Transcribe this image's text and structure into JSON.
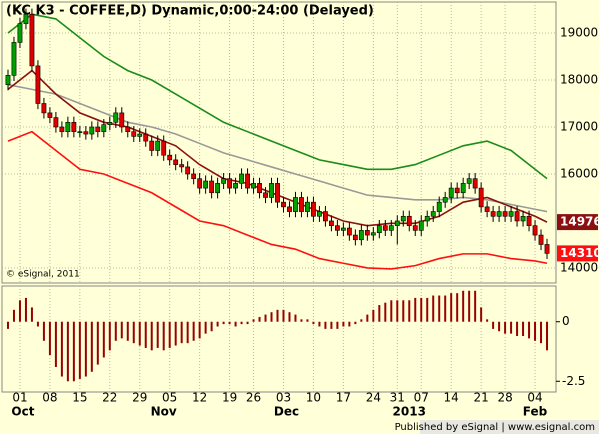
{
  "chart_data": [
    {
      "type": "candlestick",
      "title": "(KC K3 - COFFEE,D) Dynamic,0:00-24:00 (Delayed)",
      "watermark": "© eSignal, 2011",
      "up_color": "#00a000",
      "down_color": "#dd0000",
      "x": [
        -2,
        -1,
        0,
        1,
        2,
        3,
        4,
        5,
        6,
        7,
        8,
        9,
        10,
        11,
        12,
        13,
        14,
        15,
        16,
        17,
        18,
        19,
        20,
        21,
        22,
        23,
        24,
        25,
        26,
        27,
        28,
        29,
        30,
        31,
        32,
        33,
        34,
        35,
        36,
        37,
        38,
        39,
        40,
        41,
        42,
        43,
        44,
        45,
        46,
        47,
        48,
        49,
        50,
        51,
        52,
        53,
        54,
        55,
        56,
        57,
        58,
        59,
        60,
        61,
        62,
        63,
        64,
        65,
        66,
        67,
        68,
        69,
        70,
        71,
        72,
        73,
        74,
        75,
        76,
        77,
        78,
        79,
        80,
        81,
        82,
        83,
        84,
        85,
        86,
        87,
        88
      ],
      "open": [
        17900,
        18100,
        18800,
        19200,
        19400,
        18300,
        17500,
        17300,
        17200,
        17000,
        16900,
        17100,
        16900,
        16900,
        16850,
        17000,
        16900,
        17050,
        17100,
        17300,
        17000,
        16900,
        16800,
        16850,
        16700,
        16500,
        16700,
        16400,
        16300,
        16200,
        16150,
        16000,
        15900,
        15700,
        15850,
        15600,
        15800,
        15900,
        15700,
        15800,
        16000,
        15700,
        15800,
        15600,
        15500,
        15800,
        15400,
        15300,
        15200,
        15500,
        15200,
        15400,
        15100,
        15200,
        15000,
        14900,
        14800,
        14850,
        14700,
        14600,
        14800,
        14700,
        14750,
        14900,
        14800,
        14900,
        15000,
        15100,
        14900,
        14800,
        15000,
        15100,
        15200,
        15400,
        15500,
        15700,
        15600,
        15800,
        15900,
        15700,
        15300,
        15200,
        15100,
        15200,
        15100,
        15200,
        15000,
        15100,
        14900,
        14700,
        14500
      ],
      "high": [
        18220,
        18920,
        19320,
        19520,
        19520,
        18420,
        17620,
        17420,
        17320,
        17120,
        17220,
        17220,
        17020,
        17020,
        17120,
        17120,
        17170,
        17220,
        17420,
        17420,
        17120,
        17020,
        16970,
        16970,
        16820,
        16820,
        16820,
        16520,
        16420,
        16320,
        16270,
        16120,
        16020,
        15970,
        15970,
        15920,
        16020,
        16020,
        15920,
        16120,
        16120,
        15920,
        15920,
        15720,
        15920,
        15920,
        15520,
        15420,
        15620,
        15620,
        15520,
        15520,
        15320,
        15320,
        15120,
        15020,
        14970,
        14970,
        14820,
        14920,
        14920,
        14870,
        15020,
        15020,
        15020,
        15120,
        15220,
        15220,
        15020,
        15120,
        15220,
        15320,
        15520,
        15620,
        15820,
        15820,
        15920,
        16020,
        16020,
        15820,
        15420,
        15320,
        15320,
        15320,
        15320,
        15320,
        15220,
        15220,
        15020,
        14820,
        14620
      ],
      "low": [
        17780,
        17980,
        18680,
        19080,
        18180,
        17380,
        17180,
        17080,
        16880,
        16780,
        16780,
        16780,
        16780,
        16730,
        16730,
        16780,
        16780,
        16930,
        16980,
        16880,
        16780,
        16680,
        16680,
        16580,
        16380,
        16380,
        16280,
        16180,
        16080,
        16030,
        15880,
        15780,
        15580,
        15580,
        15480,
        15480,
        15680,
        15580,
        15580,
        15680,
        15580,
        15580,
        15480,
        15380,
        15380,
        15280,
        15180,
        15080,
        15080,
        15080,
        15080,
        14980,
        14980,
        14880,
        14780,
        14680,
        14680,
        14580,
        14480,
        14480,
        14580,
        14580,
        14630,
        14680,
        14680,
        14500,
        14880,
        14780,
        14680,
        14680,
        14880,
        14980,
        15080,
        15280,
        15380,
        15480,
        15480,
        15680,
        15580,
        15180,
        15080,
        14980,
        14980,
        14980,
        14980,
        14880,
        14880,
        14780,
        14580,
        14380,
        14190
      ],
      "close": [
        18100,
        18800,
        19200,
        19400,
        18300,
        17500,
        17300,
        17200,
        17000,
        16900,
        17100,
        16900,
        16900,
        16850,
        17000,
        16900,
        17050,
        17100,
        17300,
        17000,
        16900,
        16800,
        16850,
        16700,
        16500,
        16700,
        16400,
        16300,
        16200,
        16150,
        16000,
        15900,
        15700,
        15850,
        15600,
        15800,
        15900,
        15700,
        15800,
        16000,
        15700,
        15800,
        15600,
        15500,
        15800,
        15400,
        15300,
        15200,
        15500,
        15200,
        15400,
        15100,
        15200,
        15000,
        14900,
        14800,
        14850,
        14700,
        14600,
        14800,
        14700,
        14750,
        14900,
        14800,
        14900,
        15000,
        15100,
        14900,
        14800,
        15000,
        15100,
        15200,
        15400,
        15500,
        15700,
        15600,
        15800,
        15900,
        15700,
        15300,
        15200,
        15100,
        15200,
        15100,
        15200,
        15000,
        15100,
        14900,
        14700,
        14500,
        14310
      ],
      "lines": [
        {
          "color": "#1a8c1a",
          "x": [
            -2,
            2,
            6,
            10,
            14,
            18,
            22,
            26,
            30,
            34,
            38,
            42,
            46,
            50,
            54,
            58,
            62,
            66,
            70,
            74,
            78,
            82,
            86,
            88
          ],
          "values": [
            19000,
            19400,
            19300,
            18900,
            18500,
            18200,
            18000,
            17700,
            17400,
            17100,
            16900,
            16700,
            16500,
            16300,
            16200,
            16100,
            16100,
            16200,
            16400,
            16600,
            16700,
            16500,
            16100,
            15900
          ]
        },
        {
          "color": "#999999",
          "x": [
            -2,
            2,
            6,
            10,
            14,
            18,
            22,
            26,
            30,
            34,
            38,
            42,
            46,
            50,
            54,
            58,
            62,
            66,
            70,
            74,
            78,
            82,
            86,
            88
          ],
          "values": [
            17900,
            17800,
            17700,
            17500,
            17300,
            17100,
            17000,
            16850,
            16650,
            16450,
            16300,
            16150,
            16000,
            15850,
            15700,
            15550,
            15500,
            15450,
            15450,
            15500,
            15450,
            15350,
            15250,
            15200
          ]
        },
        {
          "color": "#8b1010",
          "x": [
            -2,
            2,
            6,
            10,
            14,
            18,
            22,
            26,
            30,
            34,
            38,
            42,
            46,
            50,
            54,
            58,
            62,
            66,
            70,
            74,
            78,
            82,
            86,
            88
          ],
          "values": [
            17800,
            18200,
            17700,
            17300,
            17100,
            17000,
            16800,
            16600,
            16200,
            15900,
            15800,
            15600,
            15400,
            15200,
            15000,
            14900,
            14950,
            14950,
            15100,
            15400,
            15500,
            15300,
            15100,
            14976
          ]
        },
        {
          "color": "#ff1010",
          "x": [
            -2,
            2,
            6,
            10,
            14,
            18,
            22,
            26,
            30,
            34,
            38,
            42,
            46,
            50,
            54,
            58,
            62,
            66,
            70,
            74,
            78,
            82,
            86,
            88
          ],
          "values": [
            16700,
            16900,
            16500,
            16100,
            16000,
            15800,
            15600,
            15300,
            15000,
            14900,
            14700,
            14500,
            14400,
            14200,
            14100,
            14000,
            13980,
            14050,
            14200,
            14300,
            14300,
            14200,
            14150,
            14100
          ]
        }
      ],
      "last_labels": [
        {
          "value": 14976,
          "color": "#8b1010"
        },
        {
          "value": 14310,
          "color": "#ff1010"
        }
      ],
      "xlim": [
        -3,
        89.5
      ],
      "ylim": [
        13680,
        19660
      ],
      "yticks": [
        14000,
        16000,
        17000,
        18000,
        19000
      ],
      "grid": true,
      "xticks": [
        {
          "value": 0,
          "label": "01"
        },
        {
          "value": 5,
          "label": "08"
        },
        {
          "value": 10,
          "label": "15"
        },
        {
          "value": 15,
          "label": "22"
        },
        {
          "value": 20,
          "label": "29"
        },
        {
          "value": 25,
          "label": "05"
        },
        {
          "value": 30,
          "label": "12"
        },
        {
          "value": 35,
          "label": "19"
        },
        {
          "value": 39,
          "label": "26"
        },
        {
          "value": 44,
          "label": "03"
        },
        {
          "value": 49,
          "label": "10"
        },
        {
          "value": 54,
          "label": "17"
        },
        {
          "value": 59,
          "label": "24"
        },
        {
          "value": 63,
          "label": "31"
        },
        {
          "value": 67,
          "label": "07"
        },
        {
          "value": 72,
          "label": "14"
        },
        {
          "value": 77,
          "label": "21"
        },
        {
          "value": 81,
          "label": "28"
        },
        {
          "value": 86,
          "label": "04"
        }
      ],
      "month_labels": [
        {
          "value": 0.5,
          "label": "Oct"
        },
        {
          "value": 24,
          "label": "Nov"
        },
        {
          "value": 44.5,
          "label": "Dec"
        },
        {
          "value": 65,
          "label": "2013"
        },
        {
          "value": 86,
          "label": "Feb"
        }
      ]
    },
    {
      "type": "bar",
      "color": "#990000",
      "x": [
        -2,
        -1,
        0,
        1,
        2,
        3,
        4,
        5,
        6,
        7,
        8,
        9,
        10,
        11,
        12,
        13,
        14,
        15,
        16,
        17,
        18,
        19,
        20,
        21,
        22,
        23,
        24,
        25,
        26,
        27,
        28,
        29,
        30,
        31,
        32,
        33,
        34,
        35,
        36,
        37,
        38,
        39,
        40,
        41,
        42,
        43,
        44,
        45,
        46,
        47,
        48,
        49,
        50,
        51,
        52,
        53,
        54,
        55,
        56,
        57,
        58,
        59,
        60,
        61,
        62,
        63,
        64,
        65,
        66,
        67,
        68,
        69,
        70,
        71,
        72,
        73,
        74,
        75,
        76,
        77,
        78,
        79,
        80,
        81,
        82,
        83,
        84,
        85,
        86,
        87,
        88
      ],
      "values": [
        -0.3,
        0.5,
        0.9,
        1.0,
        0.6,
        -0.2,
        -0.8,
        -1.4,
        -1.9,
        -2.3,
        -2.5,
        -2.5,
        -2.4,
        -2.3,
        -2.1,
        -1.8,
        -1.5,
        -1.2,
        -0.8,
        -0.7,
        -0.8,
        -0.9,
        -1.0,
        -1.1,
        -1.2,
        -1.1,
        -1.2,
        -1.1,
        -1.0,
        -0.9,
        -0.9,
        -0.8,
        -0.7,
        -0.5,
        -0.4,
        -0.2,
        -0.1,
        -0.1,
        -0.2,
        -0.1,
        -0.1,
        0.1,
        0.2,
        0.3,
        0.4,
        0.5,
        0.5,
        0.4,
        0.3,
        0.1,
        0.1,
        -0.1,
        -0.2,
        -0.3,
        -0.3,
        -0.3,
        -0.2,
        -0.2,
        -0.1,
        0.1,
        0.3,
        0.5,
        0.7,
        0.8,
        0.9,
        0.9,
        0.9,
        0.9,
        1.0,
        1.0,
        1.0,
        1.1,
        1.1,
        1.1,
        1.2,
        1.2,
        1.3,
        1.3,
        1.3,
        0.6,
        0.1,
        -0.3,
        -0.4,
        -0.5,
        -0.5,
        -0.6,
        -0.6,
        -0.7,
        -0.8,
        -0.9,
        -1.2
      ],
      "ylim": [
        -2.95,
        1.5
      ],
      "yticks": [
        0,
        -2.5
      ]
    }
  ],
  "footer": "Published by eSignal | www.esignal.com"
}
